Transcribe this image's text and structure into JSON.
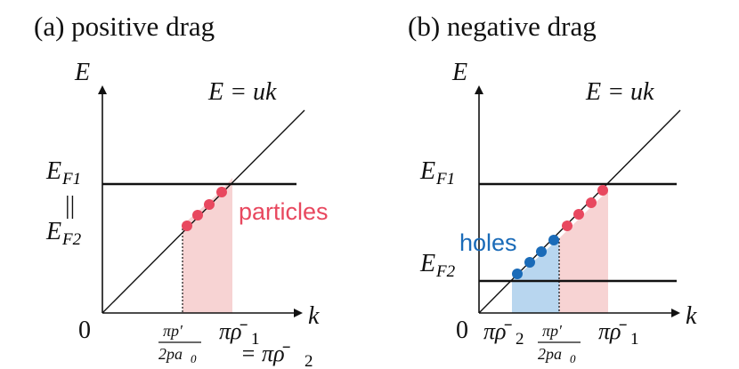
{
  "panels": [
    {
      "title": "(a) positive drag",
      "y_axis_label": "E",
      "x_axis_label": "k",
      "origin_label": "0",
      "line_label": "E = uk",
      "fermi_top": "E",
      "fermi_top_sub": "F1",
      "equals_symbol": "||",
      "fermi_bottom": "E",
      "fermi_bottom_sub": "F2",
      "region_label": "particles",
      "tick_left_num": "πp′",
      "tick_left_den": "2pa",
      "tick_left_den_sub": "0",
      "tick_right": "πρ̄",
      "tick_right_sub": "1",
      "tick_right_eq": "= πρ̄",
      "tick_right_eq_sub": "2"
    },
    {
      "title": "(b) negative drag",
      "y_axis_label": "E",
      "x_axis_label": "k",
      "origin_label": "0",
      "line_label": "E = uk",
      "fermi_top": "E",
      "fermi_top_sub": "F1",
      "fermi_bottom": "E",
      "fermi_bottom_sub": "F2",
      "region_label": "holes",
      "tick_left": "πρ̄",
      "tick_left_sub": "2",
      "tick_mid_num": "πp′",
      "tick_mid_den": "2pa",
      "tick_mid_den_sub": "0",
      "tick_right": "πρ̄",
      "tick_right_sub": "1"
    }
  ],
  "colors": {
    "particle_fill": "#f7d3d3",
    "particle_dot": "#e8485f",
    "hole_fill": "#b8d6ef",
    "hole_dot": "#1a6bb8",
    "axis": "#111111"
  }
}
